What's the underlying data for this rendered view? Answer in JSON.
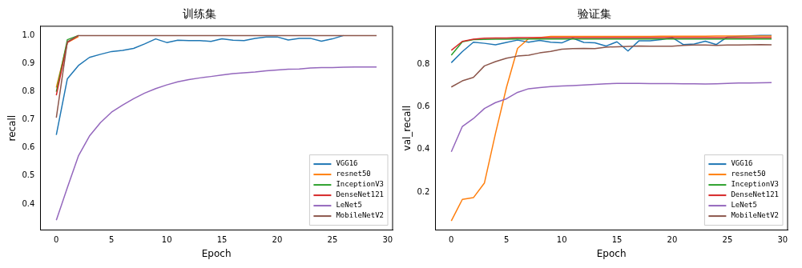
{
  "chart_data": [
    {
      "type": "line",
      "title": "训练集",
      "xlabel": "Epoch",
      "ylabel": "recall",
      "x": [
        0,
        1,
        2,
        3,
        4,
        5,
        6,
        7,
        8,
        9,
        10,
        11,
        12,
        13,
        14,
        15,
        16,
        17,
        18,
        19,
        20,
        21,
        22,
        23,
        24,
        25,
        26,
        27,
        28,
        29
      ],
      "xlim": [
        -1.45,
        30.45
      ],
      "xticks": [
        0,
        5,
        10,
        15,
        20,
        25,
        30
      ],
      "ylim": [
        0.307,
        1.033
      ],
      "yticks": [
        0.4,
        0.5,
        0.6,
        0.7,
        0.8,
        0.9,
        {
          "value": 1,
          "label": "1.0"
        }
      ],
      "grid": false,
      "legend": "bottom right",
      "marker": "none",
      "line_style": "solid",
      "series": [
        {
          "name": "VGG16",
          "color": "#1f77b4",
          "values": [
            0.646,
            0.846,
            0.893,
            0.922,
            0.933,
            0.943,
            0.947,
            0.954,
            0.97,
            0.988,
            0.975,
            0.983,
            0.982,
            0.982,
            0.979,
            0.988,
            0.983,
            0.982,
            0.99,
            0.995,
            0.995,
            0.984,
            0.99,
            0.99,
            0.98,
            0.988,
            1.0,
            null,
            null,
            null
          ]
        },
        {
          "name": "resnet50",
          "color": "#ff7f0e",
          "values": [
            0.815,
            0.975,
            0.996,
            null,
            null,
            null,
            null,
            null,
            null,
            null,
            null,
            null,
            null,
            null,
            null,
            null,
            null,
            null,
            null,
            null,
            null,
            null,
            null,
            null,
            null,
            null,
            null,
            null,
            null,
            null
          ]
        },
        {
          "name": "InceptionV3",
          "color": "#2ca02c",
          "values": [
            0.8,
            0.985,
            1.0,
            null,
            null,
            null,
            null,
            null,
            null,
            null,
            null,
            null,
            null,
            null,
            null,
            null,
            null,
            null,
            null,
            null,
            null,
            null,
            null,
            null,
            null,
            null,
            null,
            null,
            null,
            null
          ]
        },
        {
          "name": "DenseNet121",
          "color": "#d62728",
          "values": [
            0.787,
            0.975,
            1.0,
            null,
            null,
            null,
            null,
            null,
            null,
            null,
            null,
            null,
            null,
            null,
            null,
            null,
            null,
            null,
            null,
            null,
            null,
            null,
            null,
            null,
            null,
            null,
            null,
            null,
            null,
            null
          ]
        },
        {
          "name": "LeNet5",
          "color": "#9467bd",
          "values": [
            0.342,
            0.458,
            0.571,
            0.642,
            0.69,
            0.727,
            0.752,
            0.775,
            0.795,
            0.811,
            0.824,
            0.835,
            0.843,
            0.849,
            0.854,
            0.859,
            0.864,
            0.867,
            0.87,
            0.874,
            0.877,
            0.88,
            0.881,
            0.884,
            0.886,
            0.886,
            0.887,
            0.888,
            0.888,
            0.888
          ]
        },
        {
          "name": "MobileNetV2",
          "color": "#8c564b",
          "values": [
            0.707,
            0.978,
            1.0,
            1.0,
            1.0,
            1.0,
            1.0,
            1.0,
            1.0,
            1.0,
            1.0,
            1.0,
            1.0,
            1.0,
            1.0,
            1.0,
            1.0,
            1.0,
            1.0,
            1.0,
            1.0,
            1.0,
            1.0,
            1.0,
            1.0,
            1.0,
            1.0,
            1.0,
            1.0,
            1.0
          ]
        }
      ]
    },
    {
      "type": "line",
      "title": "验证集",
      "xlabel": "Epoch",
      "ylabel": "val_recall",
      "x": [
        0,
        1,
        2,
        3,
        4,
        5,
        6,
        7,
        8,
        9,
        10,
        11,
        12,
        13,
        14,
        15,
        16,
        17,
        18,
        19,
        20,
        21,
        22,
        23,
        24,
        25,
        26,
        27,
        28,
        29
      ],
      "xlim": [
        -1.45,
        30.45
      ],
      "xticks": [
        0,
        5,
        10,
        15,
        20,
        25,
        30
      ],
      "ylim": [
        0.022,
        0.978
      ],
      "yticks": [
        0.2,
        0.4,
        0.6,
        0.8
      ],
      "grid": false,
      "legend": "bottom right",
      "marker": "none",
      "line_style": "solid",
      "series": [
        {
          "name": "VGG16",
          "color": "#1f77b4",
          "values": [
            0.807,
            0.859,
            0.903,
            0.898,
            0.891,
            0.902,
            0.913,
            0.903,
            0.912,
            0.903,
            0.9,
            0.922,
            0.902,
            0.9,
            0.885,
            0.905,
            0.862,
            0.91,
            0.91,
            0.915,
            0.925,
            0.892,
            0.895,
            0.908,
            0.892,
            0.928,
            0.93,
            0.933,
            0.935,
            0.935
          ]
        },
        {
          "name": "resnet50",
          "color": "#ff7f0e",
          "values": [
            0.065,
            0.166,
            0.174,
            0.243,
            0.475,
            0.692,
            0.874,
            0.92,
            0.925,
            0.93,
            0.93,
            0.93,
            0.93,
            0.93,
            0.93,
            0.93,
            0.93,
            0.93,
            0.93,
            0.931,
            0.931,
            0.931,
            0.931,
            0.931,
            0.932,
            0.932,
            0.932,
            0.932,
            0.932,
            0.932
          ]
        },
        {
          "name": "InceptionV3",
          "color": "#2ca02c",
          "values": [
            0.842,
            0.905,
            0.915,
            0.916,
            0.917,
            0.917,
            0.918,
            0.918,
            0.918,
            0.918,
            0.918,
            0.918,
            0.918,
            0.918,
            0.918,
            0.918,
            0.918,
            0.918,
            0.918,
            0.918,
            0.918,
            0.918,
            0.918,
            0.918,
            0.918,
            0.918,
            0.918,
            0.918,
            0.918,
            0.918
          ]
        },
        {
          "name": "DenseNet121",
          "color": "#d62728",
          "values": [
            0.865,
            0.907,
            0.917,
            0.922,
            0.923,
            0.923,
            0.925,
            0.925,
            0.925,
            0.925,
            0.925,
            0.925,
            0.925,
            0.925,
            0.925,
            0.925,
            0.925,
            0.925,
            0.925,
            0.925,
            0.925,
            0.925,
            0.925,
            0.925,
            0.925,
            0.925,
            0.925,
            0.925,
            0.925,
            0.925
          ]
        },
        {
          "name": "LeNet5",
          "color": "#9467bd",
          "values": [
            0.389,
            0.508,
            0.545,
            0.592,
            0.62,
            0.638,
            0.668,
            0.685,
            0.69,
            0.695,
            0.698,
            0.7,
            0.702,
            0.705,
            0.708,
            0.71,
            0.71,
            0.71,
            0.709,
            0.709,
            0.709,
            0.708,
            0.708,
            0.707,
            0.708,
            0.71,
            0.712,
            0.712,
            0.713,
            0.714
          ]
        },
        {
          "name": "MobileNetV2",
          "color": "#8c564b",
          "values": [
            0.693,
            0.722,
            0.738,
            0.792,
            0.812,
            0.828,
            0.838,
            0.842,
            0.853,
            0.86,
            0.87,
            0.873,
            0.874,
            0.873,
            0.88,
            0.882,
            0.883,
            0.885,
            0.884,
            0.884,
            0.884,
            0.888,
            0.89,
            0.89,
            0.888,
            0.89,
            0.89,
            0.891,
            0.892,
            0.891
          ]
        }
      ]
    }
  ]
}
